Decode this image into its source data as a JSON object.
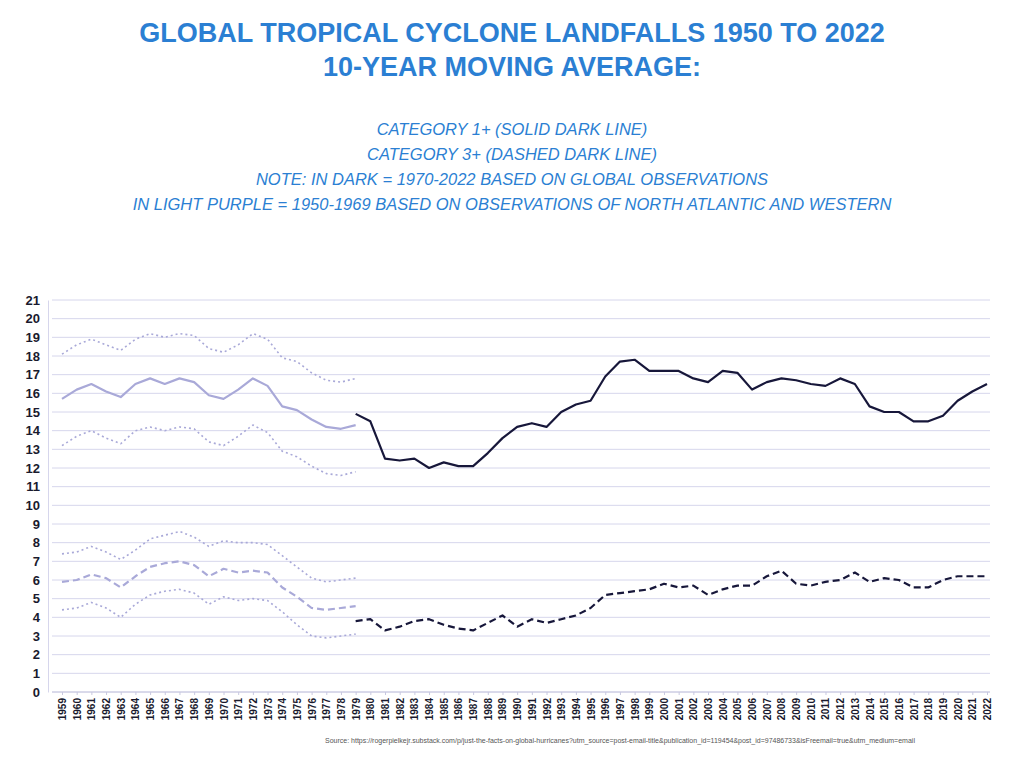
{
  "chart_data": {
    "type": "line",
    "title": [
      "GLOBAL TROPICAL CYCLONE LANDFALLS 1950 TO 2022",
      "10-YEAR MOVING AVERAGE:"
    ],
    "subtitle": [
      "CATEGORY 1+ (SOLID DARK LINE)",
      "CATEGORY 3+ (DASHED DARK LINE)",
      "NOTE: IN DARK = 1970-2022 BASED ON GLOBAL OBSERVATIONS",
      "IN LIGHT PURPLE = 1950-1969 BASED ON OBSERVATIONS OF NORTH ATLANTIC AND WESTERN"
    ],
    "annotations": [
      "Source:  https://rogerpielkejr.substack.com/p/just-the-facts-on-global-hurricanes?utm_source=post-email-title&publication_id=119454&post_id=97486733&isFreemail=true&utm_medium=email"
    ],
    "categories": [
      "1959",
      "1960",
      "1961",
      "1962",
      "1963",
      "1964",
      "1965",
      "1966",
      "1967",
      "1968",
      "1969",
      "1970",
      "1971",
      "1972",
      "1973",
      "1974",
      "1975",
      "1976",
      "1977",
      "1978",
      "1979",
      "1980",
      "1981",
      "1982",
      "1983",
      "1984",
      "1985",
      "1986",
      "1987",
      "1988",
      "1989",
      "1990",
      "1991",
      "1992",
      "1993",
      "1994",
      "1995",
      "1996",
      "1997",
      "1998",
      "1999",
      "2000",
      "2001",
      "2002",
      "2003",
      "2004",
      "2005",
      "2006",
      "2007",
      "2008",
      "2009",
      "2010",
      "2011",
      "2012",
      "2013",
      "2014",
      "2015",
      "2016",
      "2017",
      "2018",
      "2019",
      "2020",
      "2021",
      "2022"
    ],
    "ylim": [
      0,
      21
    ],
    "yticks": [
      0,
      1,
      2,
      3,
      4,
      5,
      6,
      7,
      8,
      9,
      10,
      11,
      12,
      13,
      14,
      15,
      16,
      17,
      18,
      19,
      20,
      21
    ],
    "grid": true,
    "series": [
      {
        "color": "#a9a9d8",
        "line_style": "dotted",
        "values": [
          18.1,
          18.6,
          18.9,
          18.6,
          18.3,
          18.9,
          19.2,
          19.0,
          19.2,
          19.1,
          18.4,
          18.2,
          18.6,
          19.2,
          18.9,
          17.9,
          17.7,
          17.1,
          16.7,
          16.6,
          16.8,
          null,
          null,
          null,
          null,
          null,
          null,
          null,
          null,
          null,
          null,
          null,
          null,
          null,
          null,
          null,
          null,
          null,
          null,
          null,
          null,
          null,
          null,
          null,
          null,
          null,
          null,
          null,
          null,
          null,
          null,
          null,
          null,
          null,
          null,
          null,
          null,
          null,
          null,
          null,
          null,
          null,
          null,
          null
        ]
      },
      {
        "color": "#a9a9d8",
        "line_style": "solid",
        "values": [
          15.7,
          16.2,
          16.5,
          16.1,
          15.8,
          16.5,
          16.8,
          16.5,
          16.8,
          16.6,
          15.9,
          15.7,
          16.2,
          16.8,
          16.4,
          15.3,
          15.1,
          14.6,
          14.2,
          14.1,
          14.3,
          null,
          null,
          null,
          null,
          null,
          null,
          null,
          null,
          null,
          null,
          null,
          null,
          null,
          null,
          null,
          null,
          null,
          null,
          null,
          null,
          null,
          null,
          null,
          null,
          null,
          null,
          null,
          null,
          null,
          null,
          null,
          null,
          null,
          null,
          null,
          null,
          null,
          null,
          null,
          null,
          null,
          null,
          null
        ]
      },
      {
        "color": "#a9a9d8",
        "line_style": "dotted",
        "values": [
          13.2,
          13.7,
          14.0,
          13.6,
          13.3,
          14.0,
          14.2,
          14.0,
          14.2,
          14.1,
          13.4,
          13.2,
          13.7,
          14.3,
          13.9,
          12.9,
          12.6,
          12.1,
          11.7,
          11.6,
          11.8,
          null,
          null,
          null,
          null,
          null,
          null,
          null,
          null,
          null,
          null,
          null,
          null,
          null,
          null,
          null,
          null,
          null,
          null,
          null,
          null,
          null,
          null,
          null,
          null,
          null,
          null,
          null,
          null,
          null,
          null,
          null,
          null,
          null,
          null,
          null,
          null,
          null,
          null,
          null,
          null,
          null,
          null,
          null
        ]
      },
      {
        "color": "#a9a9d8",
        "line_style": "dotted",
        "values": [
          7.4,
          7.5,
          7.8,
          7.5,
          7.1,
          7.6,
          8.2,
          8.4,
          8.6,
          8.3,
          7.8,
          8.1,
          8.0,
          8.0,
          7.9,
          7.3,
          6.7,
          6.1,
          5.9,
          6.0,
          6.1,
          null,
          null,
          null,
          null,
          null,
          null,
          null,
          null,
          null,
          null,
          null,
          null,
          null,
          null,
          null,
          null,
          null,
          null,
          null,
          null,
          null,
          null,
          null,
          null,
          null,
          null,
          null,
          null,
          null,
          null,
          null,
          null,
          null,
          null,
          null,
          null,
          null,
          null,
          null,
          null,
          null,
          null,
          null
        ]
      },
      {
        "color": "#a9a9d8",
        "line_style": "dashed",
        "values": [
          5.9,
          6.0,
          6.3,
          6.1,
          5.6,
          6.2,
          6.7,
          6.9,
          7.0,
          6.8,
          6.2,
          6.6,
          6.4,
          6.5,
          6.4,
          5.6,
          5.1,
          4.5,
          4.4,
          4.5,
          4.6,
          null,
          null,
          null,
          null,
          null,
          null,
          null,
          null,
          null,
          null,
          null,
          null,
          null,
          null,
          null,
          null,
          null,
          null,
          null,
          null,
          null,
          null,
          null,
          null,
          null,
          null,
          null,
          null,
          null,
          null,
          null,
          null,
          null,
          null,
          null,
          null,
          null,
          null,
          null,
          null,
          null,
          null,
          null
        ]
      },
      {
        "color": "#a9a9d8",
        "line_style": "dotted",
        "values": [
          4.4,
          4.5,
          4.8,
          4.5,
          4.0,
          4.7,
          5.2,
          5.4,
          5.5,
          5.3,
          4.7,
          5.1,
          4.9,
          5.0,
          4.9,
          4.3,
          3.6,
          3.0,
          2.9,
          3.0,
          3.1,
          null,
          null,
          null,
          null,
          null,
          null,
          null,
          null,
          null,
          null,
          null,
          null,
          null,
          null,
          null,
          null,
          null,
          null,
          null,
          null,
          null,
          null,
          null,
          null,
          null,
          null,
          null,
          null,
          null,
          null,
          null,
          null,
          null,
          null,
          null,
          null,
          null,
          null,
          null,
          null,
          null,
          null,
          null
        ]
      },
      {
        "color": "#17173a",
        "line_style": "solid",
        "values": [
          null,
          null,
          null,
          null,
          null,
          null,
          null,
          null,
          null,
          null,
          null,
          null,
          null,
          null,
          null,
          null,
          null,
          null,
          null,
          null,
          14.9,
          14.5,
          12.5,
          12.4,
          12.5,
          12.0,
          12.3,
          12.1,
          12.1,
          12.8,
          13.6,
          14.2,
          14.4,
          14.2,
          15.0,
          15.4,
          15.6,
          16.9,
          17.7,
          17.8,
          17.2,
          17.2,
          17.2,
          16.8,
          16.6,
          17.2,
          17.1,
          16.2,
          16.6,
          16.8,
          16.7,
          16.5,
          16.4,
          16.8,
          16.5,
          15.3,
          15.0,
          15.0,
          14.5,
          14.5,
          14.8,
          15.6,
          16.1,
          16.5
        ]
      },
      {
        "color": "#17173a",
        "line_style": "dashed",
        "values": [
          null,
          null,
          null,
          null,
          null,
          null,
          null,
          null,
          null,
          null,
          null,
          null,
          null,
          null,
          null,
          null,
          null,
          null,
          null,
          null,
          3.8,
          3.9,
          3.3,
          3.5,
          3.8,
          3.9,
          3.6,
          3.4,
          3.3,
          3.7,
          4.1,
          3.5,
          3.9,
          3.7,
          3.9,
          4.1,
          4.5,
          5.2,
          5.3,
          5.4,
          5.5,
          5.8,
          5.6,
          5.7,
          5.2,
          5.5,
          5.7,
          5.7,
          6.2,
          6.5,
          5.8,
          5.7,
          5.9,
          6.0,
          6.4,
          5.9,
          6.1,
          6.0,
          5.6,
          5.6,
          6.0,
          6.2,
          6.2,
          6.2
        ]
      }
    ]
  }
}
